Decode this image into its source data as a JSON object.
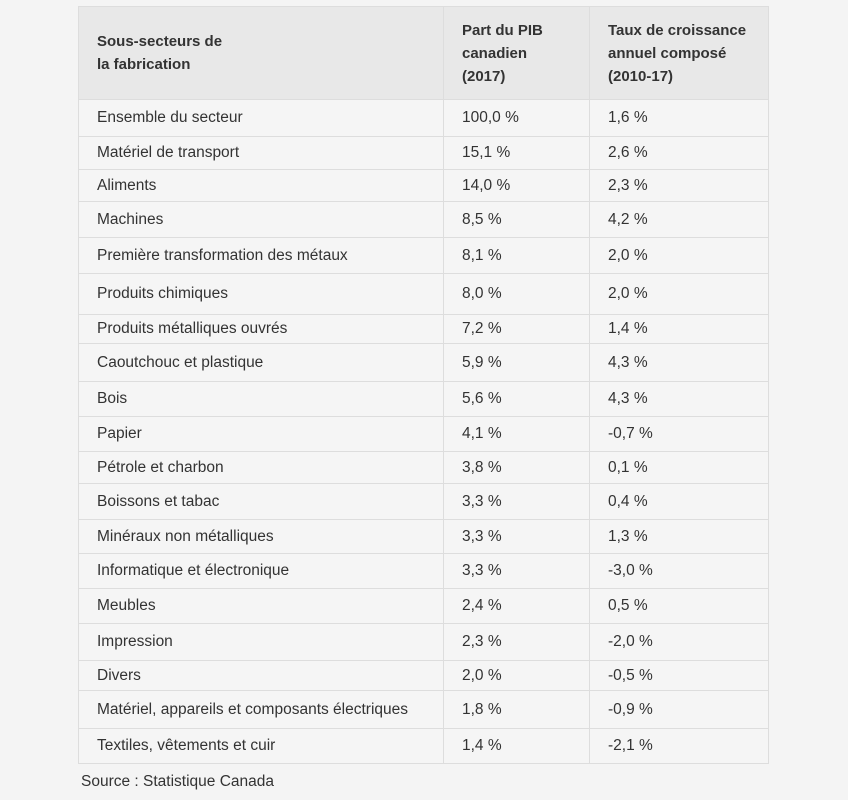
{
  "table": {
    "headers": [
      "Sous-secteurs de\nla fabrication",
      "Part du PIB\ncanadien (2017)",
      "Taux de croissance\nannuel composé\n(2010-17)"
    ],
    "rows": [
      [
        "Ensemble du secteur",
        "100,0 %",
        "1,6 %"
      ],
      [
        "Matériel de transport",
        "15,1 %",
        "2,6 %"
      ],
      [
        "Aliments",
        "14,0 %",
        "2,3 %"
      ],
      [
        "Machines",
        "8,5 %",
        "4,2 %"
      ],
      [
        "Première transformation des métaux",
        "8,1 %",
        "2,0 %"
      ],
      [
        "Produits chimiques",
        "8,0 %",
        "2,0 %"
      ],
      [
        "Produits métalliques ouvrés",
        "7,2 %",
        "1,4 %"
      ],
      [
        "Caoutchouc et plastique",
        "5,9 %",
        "4,3 %"
      ],
      [
        "Bois",
        "5,6 %",
        "4,3 %"
      ],
      [
        "Papier",
        "4,1 %",
        "-0,7 %"
      ],
      [
        "Pétrole et charbon",
        "3,8 %",
        "0,1 %"
      ],
      [
        "Boissons et tabac",
        "3,3 %",
        "0,4 %"
      ],
      [
        "Minéraux non métalliques",
        "3,3 %",
        "1,3 %"
      ],
      [
        "Informatique et électronique",
        "3,3 %",
        "-3,0 %"
      ],
      [
        "Meubles",
        "2,4 %",
        "0,5 %"
      ],
      [
        "Impression",
        "2,3 %",
        "-2,0 %"
      ],
      [
        "Divers",
        "2,0 %",
        "-0,5 %"
      ],
      [
        "Matériel, appareils et composants électriques",
        "1,8 %",
        "-0,9 %"
      ],
      [
        "Textiles, vêtements et cuir",
        "1,4 %",
        "-2,1 %"
      ]
    ]
  },
  "source": "Source : Statistique Canada"
}
